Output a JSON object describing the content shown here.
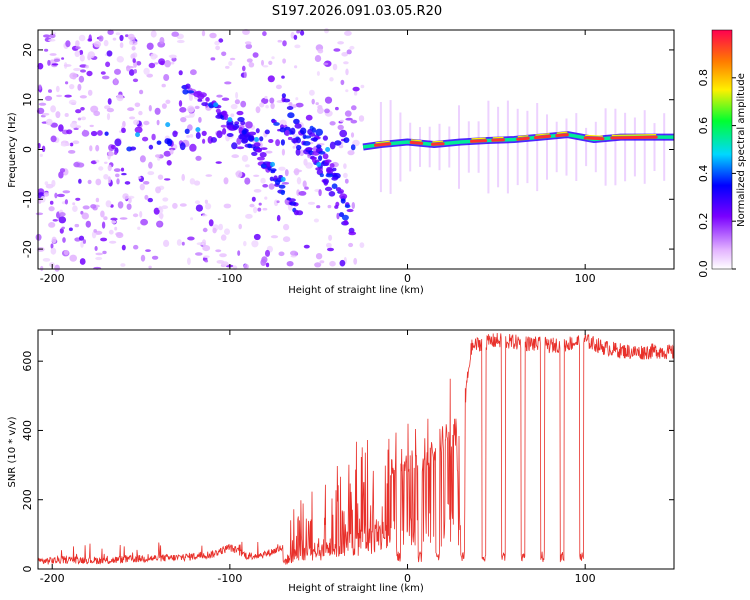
{
  "title": "S197.2026.091.03.05.R20",
  "chart_data": [
    {
      "type": "heatmap",
      "xlabel": "Height of straight line (km)",
      "ylabel": "Frequency (Hz)",
      "xlim": [
        -208,
        150
      ],
      "ylim": [
        -24,
        24
      ],
      "xticks": [
        -200,
        -100,
        0,
        100
      ],
      "yticks": [
        -20,
        -10,
        0,
        10,
        20
      ],
      "colorbar": {
        "label": "Normalized spectral amplitude",
        "range": [
          0,
          1
        ],
        "ticks": [
          0.0,
          0.2,
          0.4,
          0.6,
          0.8
        ],
        "tick_labels": [
          "0.0",
          "0.2",
          "0.4",
          "0.6",
          "0.8"
        ]
      },
      "streak": {
        "x": [
          -25,
          -15,
          0,
          15,
          30,
          45,
          60,
          75,
          90,
          105,
          120,
          140,
          150
        ],
        "freq_hz": [
          0.5,
          1.0,
          1.5,
          1.0,
          1.5,
          1.8,
          2.0,
          2.5,
          3.0,
          2.0,
          2.5,
          2.5,
          2.5
        ]
      }
    },
    {
      "type": "line",
      "xlabel": "Height of straight line (km)",
      "ylabel": "SNR (10 * v/v)",
      "xlim": [
        -208,
        150
      ],
      "ylim": [
        0,
        690
      ],
      "xticks": [
        -200,
        -100,
        0,
        100
      ],
      "yticks": [
        0,
        200,
        400,
        600
      ],
      "color": "#e8302a",
      "series": [
        {
          "name": "SNR",
          "x": [
            -208,
            -190,
            -170,
            -150,
            -130,
            -110,
            -100,
            -90,
            -80,
            -70,
            -60,
            -50,
            -40,
            -30,
            -20,
            -10,
            0,
            10,
            20,
            30,
            33,
            36,
            40,
            50,
            60,
            70,
            80,
            90,
            100,
            110,
            120,
            130,
            140,
            150
          ],
          "y": [
            20,
            25,
            22,
            28,
            30,
            40,
            60,
            35,
            40,
            60,
            160,
            150,
            200,
            240,
            280,
            300,
            330,
            320,
            400,
            420,
            520,
            640,
            650,
            660,
            655,
            650,
            645,
            650,
            660,
            640,
            630,
            625,
            630,
            625
          ]
        }
      ],
      "dips": [
        -5,
        7,
        17,
        31,
        43,
        54,
        65,
        76,
        87,
        98
      ]
    }
  ]
}
